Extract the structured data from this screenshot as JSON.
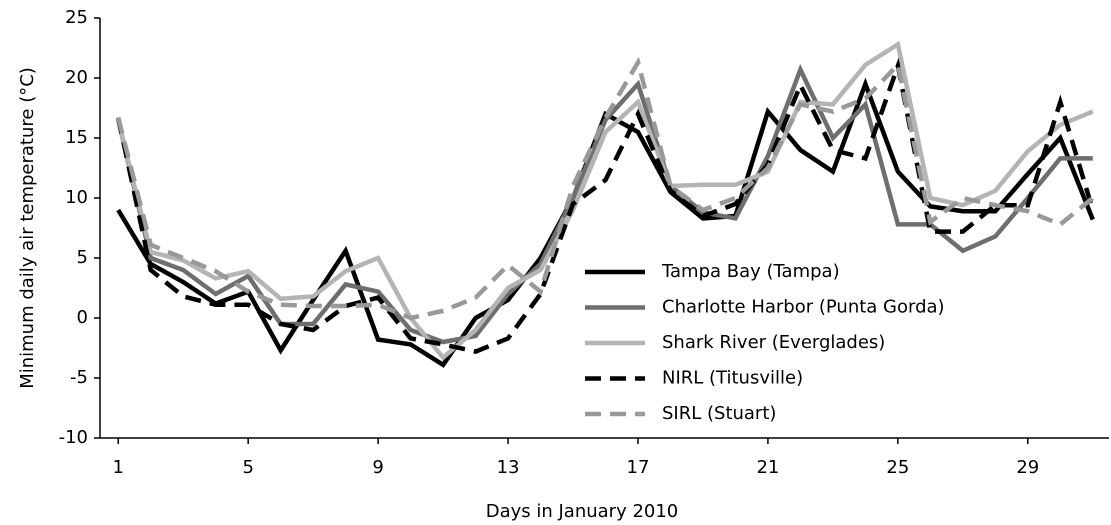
{
  "chart_data": {
    "type": "line",
    "y_label": "Minimum daily air  temperature (°C)",
    "x_label": "Days in January 2010",
    "x": [
      1,
      2,
      3,
      4,
      5,
      6,
      7,
      8,
      9,
      10,
      11,
      12,
      13,
      14,
      15,
      16,
      17,
      18,
      19,
      20,
      21,
      22,
      23,
      24,
      25,
      26,
      27,
      28,
      29,
      30,
      31
    ],
    "xlim": [
      0.5,
      31.5
    ],
    "xticks": [
      1,
      5,
      9,
      13,
      17,
      21,
      25,
      29
    ],
    "ylim": [
      -10,
      25
    ],
    "yticks": [
      -10,
      -5,
      0,
      5,
      10,
      15,
      20,
      25
    ],
    "series": [
      {
        "name": "Tampa Bay (Tampa)",
        "color": "#000000",
        "dashed": false,
        "values": [
          9,
          4.5,
          3,
          1.2,
          2.2,
          -2.7,
          1.5,
          5.6,
          -1.8,
          -2.2,
          -3.9,
          0,
          1.5,
          5,
          10,
          17,
          15.5,
          10.5,
          8.3,
          8.5,
          17.2,
          14,
          12.2,
          19.5,
          12.2,
          9.3,
          8.9,
          8.9,
          12,
          15,
          8.2
        ]
      },
      {
        "name": "Charlotte Harbor (Punta Gorda)",
        "color": "#6e6e6e",
        "dashed": false,
        "values": [
          16.5,
          5,
          4,
          2,
          3.5,
          -0.5,
          -0.5,
          2.8,
          2.2,
          -1,
          -2,
          -1.5,
          2,
          4.5,
          10,
          16.5,
          19.5,
          11,
          8.8,
          8.3,
          13.5,
          20.7,
          15,
          17.8,
          7.8,
          7.8,
          5.6,
          6.8,
          10,
          13.3,
          13.3
        ]
      },
      {
        "name": "Shark River (Everglades)",
        "color": "#b4b4b4",
        "dashed": false,
        "values": [
          16.5,
          5.5,
          4.8,
          3.3,
          3.9,
          1.6,
          1.8,
          3.9,
          5,
          0,
          -3.3,
          -1,
          2.5,
          4,
          9,
          15.5,
          18,
          11,
          11.1,
          11.1,
          12.2,
          18,
          17.8,
          21.1,
          22.8,
          10,
          9.4,
          10.6,
          13.9,
          16.1,
          17.2
        ]
      },
      {
        "name": "NIRL (Titusville)",
        "color": "#000000",
        "dashed": true,
        "values": [
          16.7,
          4,
          1.8,
          1.1,
          1.1,
          -0.5,
          -1,
          1,
          1.7,
          -1.7,
          -2.2,
          -2.8,
          -1.7,
          2,
          9.5,
          11.5,
          17,
          10.6,
          8.5,
          9.5,
          12.8,
          19.4,
          14,
          13.3,
          21,
          7.2,
          7.2,
          9.4,
          9.4,
          18,
          9
        ]
      },
      {
        "name": "SIRL (Stuart)",
        "color": "#999999",
        "dashed": true,
        "values": [
          16.7,
          6.1,
          5,
          3.9,
          2.2,
          1.1,
          1,
          1,
          1.1,
          0,
          0.6,
          1.7,
          4.4,
          2.2,
          11,
          16.7,
          21.3,
          11,
          9,
          10,
          12.5,
          17.8,
          17.2,
          18.3,
          21.1,
          8,
          10,
          9.4,
          8.9,
          7.8,
          10
        ]
      }
    ]
  }
}
